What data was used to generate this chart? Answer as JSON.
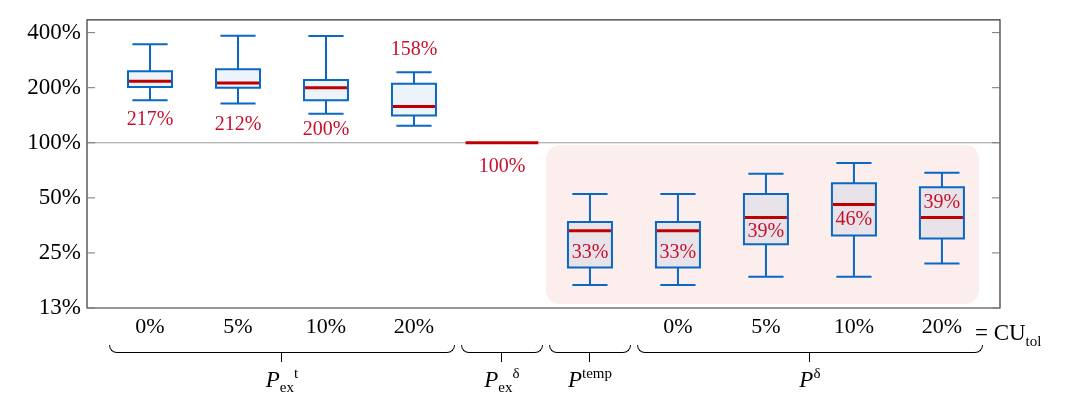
{
  "chart_data": {
    "type": "box",
    "categories": [
      "0%",
      "5%",
      "10%",
      "20%",
      null,
      null,
      "0%",
      "5%",
      "10%",
      "20%"
    ],
    "xlabel": "= CU$_{tol}$",
    "annotations": [
      "P$_{ex}$$^{t}$",
      "P$_{ex}$$^{δ}$",
      "P$^{temp}$",
      "P$^{δ}$"
    ],
    "series": [
      {
        "colors": [
          "#0a68c4",
          "#0a68c4",
          "#0a68c4",
          "#0a68c4",
          "#c00000",
          "#0a68c4",
          "#0a68c4",
          "#0a68c4",
          "#0a68c4",
          "#0a68c4"
        ],
        "boxes": [
          {
            "low": 171,
            "q1": 202,
            "median": 217,
            "q3": 246,
            "high": 346
          },
          {
            "low": 164,
            "q1": 200,
            "median": 212,
            "q3": 252,
            "high": 385
          },
          {
            "low": 144,
            "q1": 171,
            "median": 200,
            "q3": 220,
            "high": 383
          },
          {
            "low": 124,
            "q1": 141,
            "median": 158,
            "q3": 210,
            "high": 243
          },
          {
            "low": 100,
            "q1": 100,
            "median": 100,
            "q3": 100,
            "high": 100
          },
          {
            "low": 16.7,
            "q1": 20.8,
            "median": 33,
            "q3": 36.9,
            "high": 52.5
          },
          {
            "low": 16.7,
            "q1": 20.8,
            "median": 33,
            "q3": 36.9,
            "high": 52.5
          },
          {
            "low": 18.5,
            "q1": 27.9,
            "median": 39,
            "q3": 52.5,
            "high": 67.8
          },
          {
            "low": 18.5,
            "q1": 31.1,
            "median": 46,
            "q3": 60,
            "high": 77.5
          },
          {
            "low": 21.9,
            "q1": 30,
            "median": 39,
            "q3": 57.1,
            "high": 68.6
          }
        ],
        "value_labels": [
          "217%",
          "212%",
          "200%",
          "158%",
          "100%",
          "33%",
          "33%",
          "39%",
          "46%",
          "39%"
        ]
      }
    ],
    "log": true,
    "ylim": [
      12.5,
      470
    ],
    "yticks": [
      {
        "value": 12.5,
        "label": "13%"
      },
      {
        "value": 25,
        "label": "25%"
      },
      {
        "value": 50,
        "label": "50%"
      },
      {
        "value": 100,
        "label": "100%"
      },
      {
        "value": 200,
        "label": "200%"
      },
      {
        "value": 400,
        "label": "400%"
      }
    ],
    "ref_lines": [
      {
        "axis": "y",
        "value": 100,
        "color": "#9a9a9a"
      }
    ],
    "grid": false,
    "legend": false
  }
}
